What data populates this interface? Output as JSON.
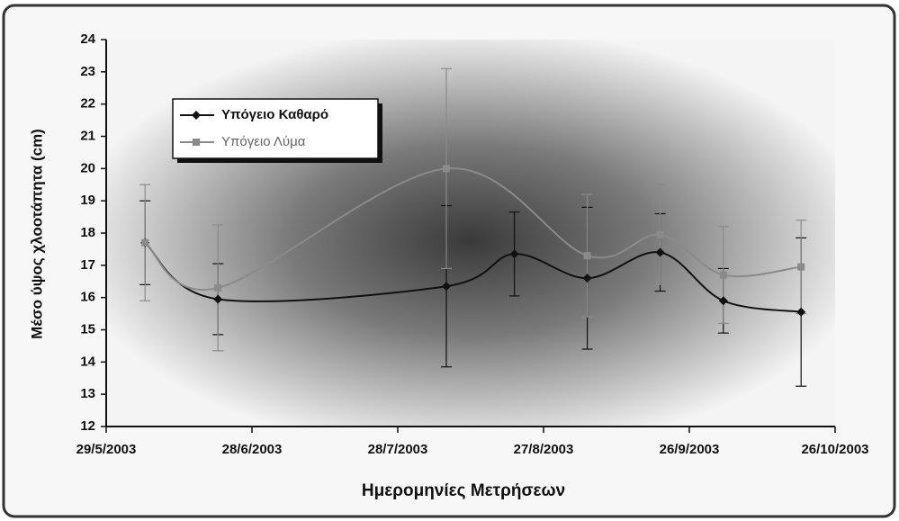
{
  "chart_data": {
    "type": "line",
    "x_label": "Ημερομηνίες Μετρήσεων",
    "y_label": "Μέσο ύψος χλοοτάπητα (cm)",
    "xlim": [
      37770,
      37920
    ],
    "xticks": [
      {
        "value": 37770,
        "label": "29/5/2003"
      },
      {
        "value": 37800,
        "label": "28/6/2003"
      },
      {
        "value": 37830,
        "label": "28/7/2003"
      },
      {
        "value": 37860,
        "label": "27/8/2003"
      },
      {
        "value": 37890,
        "label": "26/9/2003"
      },
      {
        "value": 37920,
        "label": "26/10/2003"
      }
    ],
    "ylim": [
      12,
      24
    ],
    "yticks": [
      12,
      13,
      14,
      15,
      16,
      17,
      18,
      19,
      20,
      21,
      22,
      23,
      24
    ],
    "legend": "upper left",
    "series": [
      {
        "name": "Υπόγειο Καθαρό",
        "color": "#111111",
        "marker": "diamond",
        "x": [
          37778,
          37793,
          37840,
          37854,
          37869,
          37884,
          37897,
          37913
        ],
        "values": [
          17.7,
          15.95,
          16.35,
          17.35,
          16.6,
          17.4,
          15.9,
          15.55
        ],
        "errors": [
          1.3,
          1.1,
          2.5,
          1.3,
          2.2,
          1.2,
          1.0,
          2.3
        ]
      },
      {
        "name": "Υπόγειο Λύμα",
        "color": "#8a8a8a",
        "marker": "square",
        "x": [
          37778,
          37793,
          37840,
          37869,
          37884,
          37897,
          37913
        ],
        "values": [
          17.7,
          16.3,
          20.0,
          17.3,
          17.95,
          16.7,
          16.95
        ],
        "errors": [
          1.8,
          1.95,
          3.1,
          1.9,
          1.55,
          1.5,
          1.45
        ]
      }
    ]
  }
}
